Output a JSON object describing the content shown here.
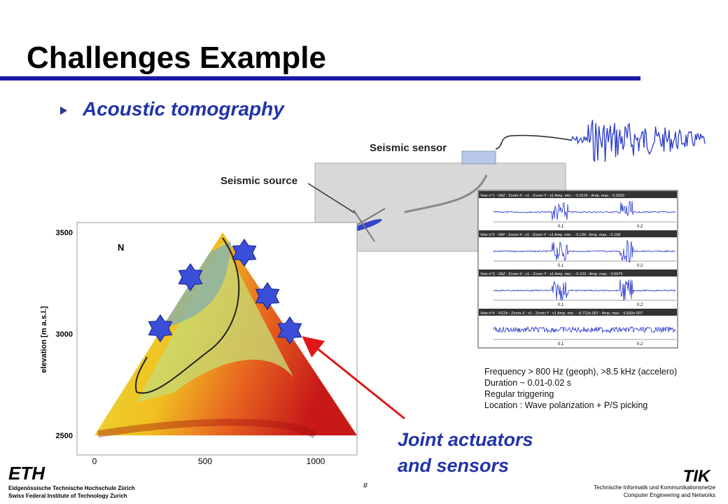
{
  "header": {
    "title": "Challenges Example"
  },
  "bullet": {
    "text": "Acoustic tomography"
  },
  "seismic_diagram": {
    "sensor_label": "Seismic sensor",
    "source_label": "Seismic source"
  },
  "traces": {
    "headers": [
      "Voie n°1 - VAZ : Zoom-X : x1 - Zoom-Y : x1   Amp. min. : -0.0115 - Amp. max. : 0.0332",
      "Voie n°2 - VAY : Zoom-X : x1 - Zoom-Y : x1   Amp. min. : -0.139 - Amp. max. : 0.168",
      "Voie n°3 - VAZ : Zoom-X : x1 - Zoom-Y : x1   Amp. min. : -0.103 - Amp. max. : 0.0975",
      "Voie n°4 - VG1h : Zoom-X : x1 - Zoom-Y : x1   Amp. min. : -8.712e-007 - Amp. max. : 6.682e-007"
    ],
    "time_labels": [
      "0.1",
      "0.2"
    ]
  },
  "notes": [
    "Frequency > 800 Hz (geoph), >8.5 kHz (accelero)",
    "Duration ~ 0.01-0.02 s",
    "Regular triggering",
    "Location : Wave polarization + P/S picking"
  ],
  "map": {
    "north": "N",
    "y_axis_label": "elevation [m a.s.l.]",
    "y_ticks": [
      "3500",
      "3000",
      "2500"
    ],
    "x_ticks": [
      "0",
      "500",
      "1000"
    ]
  },
  "callout": [
    "Joint actuators",
    "and sensors"
  ],
  "footer": {
    "logo": "ETH",
    "institution": [
      "Eidgenössische Technische Hochschule Zürich",
      "Swiss Federal Institute of Technology Zurich"
    ],
    "page": "#",
    "right_logo": "TIK",
    "department": [
      "Technische Informatik und Kommunikationsnetze",
      "Computer Engineering and Networks"
    ]
  }
}
